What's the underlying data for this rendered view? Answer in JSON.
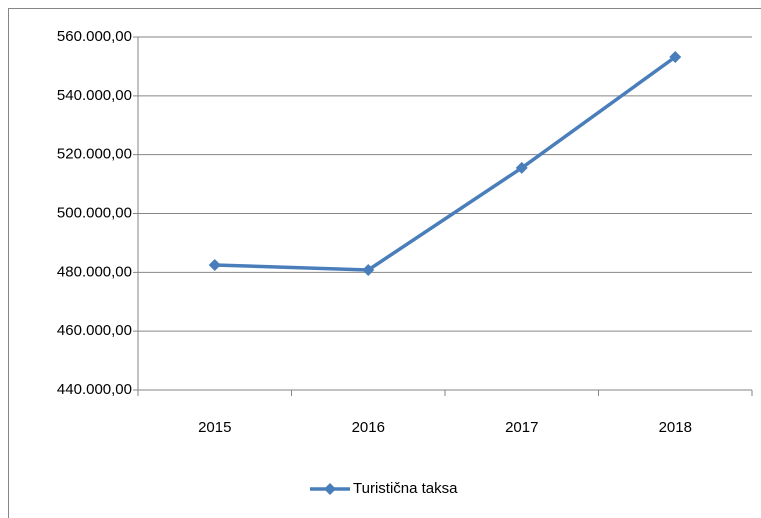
{
  "chart_data": {
    "type": "line",
    "categories": [
      "2015",
      "2016",
      "2017",
      "2018"
    ],
    "series": [
      {
        "name": "Turistična taksa",
        "color": "#4a7ebb",
        "values": [
          482500,
          480800,
          515500,
          553200
        ]
      }
    ],
    "ylim": [
      440000,
      560000
    ],
    "yticks": [
      {
        "value": 440000,
        "label": "440.000,00"
      },
      {
        "value": 460000,
        "label": "460.000,00"
      },
      {
        "value": 480000,
        "label": "480.000,00"
      },
      {
        "value": 500000,
        "label": "500.000,00"
      },
      {
        "value": 520000,
        "label": "520.000,00"
      },
      {
        "value": 540000,
        "label": "540.000,00"
      },
      {
        "value": 560000,
        "label": "560.000,00"
      }
    ],
    "grid": true,
    "legend": "bottom"
  }
}
